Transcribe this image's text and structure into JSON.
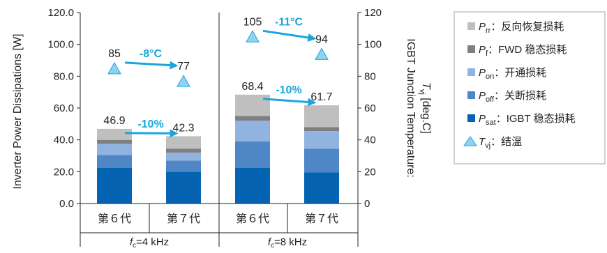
{
  "chart_data": {
    "type": "bar",
    "stacked": true,
    "groups": [
      {
        "label": "fc=4 kHz",
        "f_sub": "c",
        "f_rest": "=4 kHz",
        "categories": [
          "第６代",
          "第７代"
        ]
      },
      {
        "label": "fc=8 kHz",
        "f_sub": "c",
        "f_rest": "=8 kHz",
        "categories": [
          "第６代",
          "第７代"
        ]
      }
    ],
    "categories": [
      "第６代",
      "第７代",
      "第６代",
      "第７代"
    ],
    "series": [
      {
        "name": "Psat: IGBT 稳态损耗",
        "sym": "P",
        "sub": "sat",
        "sep": "：",
        "desc": "IGBT 稳态损耗",
        "color": "#0563b2",
        "values": [
          22.5,
          20.0,
          22.5,
          19.5
        ]
      },
      {
        "name": "Poff: 关断损耗",
        "sym": "P",
        "sub": "off",
        "sep": "：",
        "desc": "关断损耗",
        "color": "#4f86c6",
        "values": [
          8.0,
          7.0,
          16.5,
          15.0
        ]
      },
      {
        "name": "Pon: 开通损耗",
        "sym": "P",
        "sub": "on",
        "sep": "：",
        "desc": "开通损耗",
        "color": "#91b3e0",
        "values": [
          7.0,
          5.0,
          13.0,
          11.0
        ]
      },
      {
        "name": "Pf: FWD 稳态损耗",
        "sym": "P",
        "sub": "f",
        "sep": "：",
        "desc": "FWD 稳态损耗",
        "color": "#7f7f7f",
        "values": [
          2.5,
          2.5,
          3.0,
          2.5
        ]
      },
      {
        "name": "Prr: 反向恢复损耗",
        "sym": "P",
        "sub": "rr",
        "sep": "：",
        "desc": "反向恢复损耗",
        "color": "#bfbfbf",
        "values": [
          6.9,
          7.8,
          13.4,
          13.7
        ]
      }
    ],
    "totals": [
      46.9,
      42.3,
      68.4,
      61.7
    ],
    "total_labels": [
      "46.9",
      "42.3",
      "68.4",
      "61.7"
    ],
    "tvj": {
      "name": "Tvj: 结温",
      "sym": "T",
      "sub": "vj",
      "sep": "：",
      "desc": "结温",
      "values": [
        85,
        77,
        105,
        94
      ],
      "labels": [
        "85",
        "77",
        "105",
        "94"
      ],
      "color": "#8fd3f0",
      "edge": "#1aa6dd"
    },
    "annotations": [
      {
        "text": "-8°C",
        "from": 0,
        "to": 1,
        "kind": "temp"
      },
      {
        "text": "-10%",
        "from": 0,
        "to": 1,
        "kind": "loss"
      },
      {
        "text": "-11°C",
        "from": 2,
        "to": 3,
        "kind": "temp"
      },
      {
        "text": "-10%",
        "from": 2,
        "to": 3,
        "kind": "loss"
      }
    ],
    "accent_color": "#1aa6dd",
    "ylabel_left": "Inverter Power Dissipations [W]",
    "ylim_left": [
      0,
      120
    ],
    "yticks_left": [
      "0.0",
      "20.0",
      "40.0",
      "60.0",
      "80.0",
      "100.0",
      "120.0"
    ],
    "ylabel_right_line1": "IGBT Junction Temperature:",
    "ylabel_right_line2": {
      "sym": "T",
      "sub": "vj",
      "rest": " [deg.C]"
    },
    "ylim_right": [
      0,
      120
    ],
    "yticks_right": [
      "0",
      "20",
      "40",
      "60",
      "80",
      "100",
      "120"
    ],
    "legend_position": "right"
  }
}
